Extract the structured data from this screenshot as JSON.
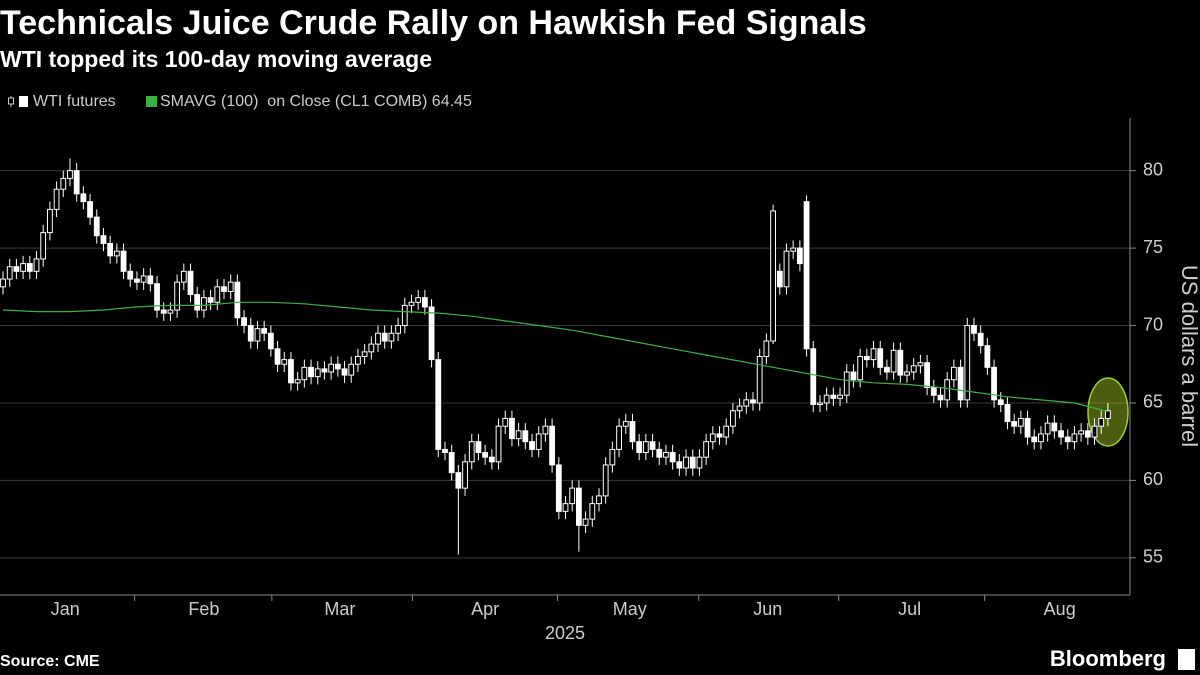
{
  "chart_data": {
    "type": "candlestick",
    "title": "Technicals Juice Crude Rally on Hawkish Fed Signals",
    "subtitle": "WTI topped its 100-day moving average",
    "ylabel": "US dollars a barrel",
    "xlabel": "2025",
    "source": "Source: CME",
    "logo": "Bloomberg",
    "ylim": [
      52.6,
      83.4
    ],
    "yticks": [
      55,
      60,
      65,
      70,
      75,
      80
    ],
    "xlim": [
      -0.45,
      168.3
    ],
    "xticks": [
      {
        "value": 9.3,
        "label": "Jan"
      },
      {
        "value": 30,
        "label": "Feb"
      },
      {
        "value": 50.3,
        "label": "Mar"
      },
      {
        "value": 72,
        "label": "Apr"
      },
      {
        "value": 93.6,
        "label": "May"
      },
      {
        "value": 114.2,
        "label": "Jun"
      },
      {
        "value": 135.4,
        "label": "Jul"
      },
      {
        "value": 157.8,
        "label": "Aug"
      }
    ],
    "grid": true,
    "series": [
      {
        "name": "WTI futures",
        "color": "#ffffff",
        "open": [
          72.5,
          73.0,
          73.8,
          73.5,
          74.0,
          73.5,
          74.3,
          76.0,
          77.5,
          78.8,
          79.5,
          80.0,
          78.5,
          78.0,
          77.0,
          75.8,
          75.3,
          74.5,
          74.8,
          73.5,
          73.0,
          72.8,
          73.2,
          72.7,
          71.0,
          70.8,
          71.0,
          72.8,
          73.5,
          72.0,
          71.0,
          71.8,
          71.5,
          72.5,
          72.2,
          72.8,
          70.5,
          70.0,
          69.0,
          69.8,
          69.5,
          68.5,
          67.5,
          67.8,
          66.3,
          66.5,
          67.3,
          66.7,
          67.2,
          67.0,
          67.5,
          67.2,
          66.8,
          67.5,
          68.0,
          68.3,
          68.8,
          69.5,
          69.0,
          69.5,
          70.0,
          71.3,
          71.5,
          71.8,
          71.2,
          67.8,
          62.0,
          61.8,
          60.5,
          59.5,
          61.2,
          62.5,
          61.8,
          61.5,
          61.2,
          63.5,
          64.0,
          62.7,
          63.2,
          62.5,
          62.0,
          63.0,
          63.5,
          61.0,
          58.0,
          58.5,
          59.5,
          57.1,
          57.5,
          58.5,
          59.0,
          61.0,
          62.0,
          63.5,
          63.8,
          62.5,
          61.8,
          62.5,
          62.0,
          61.5,
          61.8,
          61.2,
          60.8,
          61.5,
          60.8,
          61.5,
          62.5,
          63.0,
          62.8,
          63.5,
          64.5,
          64.8,
          65.2,
          65.0,
          68.0,
          69.0,
          73.5,
          72.5,
          74.8,
          75.0,
          78.0,
          68.5,
          64.9,
          65.0,
          65.5,
          65.3,
          65.5,
          67.0,
          66.5,
          68.0,
          67.8,
          68.5,
          67.3,
          67.0,
          68.4,
          66.8,
          67.0,
          67.4,
          67.6,
          66.0,
          65.5,
          65.2,
          66.5,
          67.3,
          65.2,
          70.0,
          69.5,
          68.7,
          67.3,
          65.2,
          64.9,
          63.8,
          63.5,
          64.0,
          62.8,
          62.5,
          63.0,
          63.7,
          63.2,
          62.8,
          62.5,
          63.0,
          63.2,
          62.8,
          63.5,
          64.0
        ],
        "high": [
          73.5,
          74.3,
          74.3,
          74.5,
          74.5,
          74.8,
          76.5,
          78.0,
          79.3,
          80.0,
          80.8,
          80.5,
          79.0,
          78.5,
          77.5,
          76.3,
          75.8,
          75.3,
          75.3,
          74.0,
          73.5,
          73.7,
          73.7,
          73.2,
          71.5,
          71.5,
          73.3,
          74.0,
          74.0,
          72.5,
          72.3,
          72.3,
          73.0,
          73.0,
          73.3,
          73.3,
          71.0,
          70.5,
          70.3,
          70.3,
          70.0,
          69.0,
          68.3,
          68.3,
          67.0,
          67.8,
          67.8,
          67.7,
          67.7,
          68.0,
          68.0,
          67.7,
          68.0,
          68.5,
          68.8,
          69.3,
          70.0,
          70.0,
          70.0,
          70.5,
          71.8,
          72.0,
          72.3,
          72.3,
          71.7,
          68.3,
          62.5,
          62.3,
          61.0,
          61.7,
          63.0,
          63.0,
          62.3,
          62.0,
          64.0,
          64.5,
          64.5,
          63.7,
          63.7,
          63.0,
          63.5,
          64.0,
          64.0,
          61.5,
          59.0,
          60.0,
          60.0,
          58.0,
          59.0,
          59.5,
          61.5,
          62.5,
          64.0,
          64.3,
          64.3,
          63.0,
          63.0,
          63.0,
          62.5,
          62.3,
          62.3,
          61.7,
          62.0,
          62.0,
          62.0,
          63.0,
          63.5,
          63.5,
          64.0,
          65.0,
          65.3,
          65.7,
          65.7,
          68.5,
          69.5,
          77.8,
          74.0,
          75.3,
          75.5,
          75.5,
          78.4,
          69.0,
          65.5,
          66.0,
          66.0,
          66.0,
          67.5,
          67.5,
          68.5,
          68.5,
          69.0,
          69.0,
          67.8,
          68.9,
          68.9,
          67.5,
          67.9,
          68.1,
          68.1,
          66.5,
          66.0,
          67.0,
          67.8,
          67.8,
          70.5,
          70.5,
          70.0,
          69.2,
          67.8,
          65.7,
          65.4,
          64.3,
          64.5,
          64.5,
          63.3,
          63.5,
          64.2,
          64.2,
          63.7,
          63.3,
          63.5,
          63.7,
          63.7,
          64.0,
          64.5,
          65.0
        ],
        "low": [
          72.0,
          72.5,
          73.0,
          73.0,
          73.0,
          73.0,
          73.8,
          75.5,
          77.0,
          78.3,
          79.0,
          78.0,
          77.5,
          76.5,
          75.3,
          74.8,
          74.0,
          74.0,
          73.0,
          72.5,
          72.3,
          72.3,
          72.2,
          70.5,
          70.3,
          70.3,
          70.5,
          72.3,
          71.5,
          70.5,
          70.5,
          71.0,
          71.0,
          71.7,
          71.7,
          70.0,
          69.5,
          68.5,
          68.5,
          69.0,
          68.0,
          67.0,
          67.0,
          65.8,
          65.8,
          66.0,
          66.2,
          66.2,
          66.5,
          66.5,
          66.7,
          66.3,
          66.3,
          67.0,
          67.5,
          67.8,
          68.3,
          68.5,
          68.5,
          69.0,
          69.5,
          70.8,
          71.0,
          70.7,
          67.3,
          61.5,
          61.3,
          60.0,
          55.2,
          59.0,
          60.7,
          61.3,
          61.0,
          60.7,
          60.7,
          63.0,
          62.2,
          62.2,
          62.0,
          61.5,
          61.5,
          62.5,
          60.5,
          57.5,
          57.5,
          58.0,
          55.4,
          56.6,
          57.0,
          58.0,
          58.5,
          60.5,
          61.5,
          63.0,
          62.0,
          61.3,
          61.3,
          61.5,
          61.0,
          61.0,
          60.7,
          60.3,
          60.3,
          60.3,
          60.3,
          61.0,
          62.0,
          62.3,
          62.3,
          63.0,
          64.0,
          64.3,
          64.5,
          64.5,
          67.5,
          68.8,
          72.0,
          72.0,
          74.3,
          73.5,
          68.0,
          64.4,
          64.4,
          64.5,
          64.8,
          64.8,
          65.0,
          66.0,
          66.0,
          67.3,
          67.3,
          66.8,
          66.5,
          66.5,
          66.3,
          66.3,
          66.5,
          66.9,
          65.5,
          65.0,
          64.7,
          64.7,
          66.0,
          64.7,
          64.7,
          69.0,
          68.2,
          66.8,
          64.7,
          64.4,
          63.3,
          63.0,
          63.0,
          62.3,
          62.0,
          62.0,
          62.5,
          62.7,
          62.3,
          62.0,
          62.0,
          62.5,
          62.3,
          62.3,
          63.0,
          63.5
        ],
        "close": [
          73.0,
          73.8,
          73.5,
          74.0,
          73.5,
          74.3,
          76.0,
          77.5,
          78.8,
          79.5,
          80.0,
          78.5,
          78.0,
          77.0,
          75.8,
          75.3,
          74.5,
          74.8,
          73.5,
          73.0,
          72.8,
          73.2,
          72.7,
          71.0,
          70.8,
          71.0,
          72.8,
          73.5,
          72.0,
          71.0,
          71.8,
          71.5,
          72.5,
          72.2,
          72.8,
          70.5,
          70.0,
          69.0,
          69.8,
          69.5,
          68.5,
          67.5,
          67.8,
          66.3,
          66.5,
          67.3,
          66.7,
          67.2,
          67.0,
          67.5,
          67.2,
          66.8,
          67.5,
          68.0,
          68.3,
          68.8,
          69.5,
          69.0,
          69.5,
          70.0,
          71.3,
          71.5,
          71.8,
          71.2,
          67.8,
          62.0,
          61.8,
          60.5,
          59.5,
          61.2,
          62.5,
          61.8,
          61.5,
          61.2,
          63.5,
          64.0,
          62.7,
          63.2,
          62.5,
          62.0,
          63.0,
          63.5,
          61.0,
          58.0,
          58.5,
          59.5,
          57.1,
          57.5,
          58.5,
          59.0,
          61.0,
          62.0,
          63.5,
          63.8,
          62.5,
          61.8,
          62.5,
          62.0,
          61.5,
          61.8,
          61.2,
          60.8,
          61.5,
          60.8,
          61.5,
          62.5,
          63.0,
          62.8,
          63.5,
          64.5,
          64.8,
          65.2,
          65.0,
          68.0,
          69.0,
          77.4,
          72.5,
          74.8,
          75.0,
          74.0,
          68.5,
          64.9,
          65.0,
          65.5,
          65.3,
          65.5,
          67.0,
          66.5,
          68.0,
          67.8,
          68.5,
          67.3,
          67.0,
          68.4,
          66.8,
          67.0,
          67.4,
          67.6,
          66.0,
          65.5,
          65.2,
          66.5,
          67.3,
          65.2,
          70.0,
          69.5,
          68.7,
          67.3,
          65.2,
          64.9,
          63.8,
          63.5,
          64.0,
          62.8,
          62.5,
          63.0,
          63.7,
          63.2,
          62.8,
          62.5,
          63.0,
          63.2,
          62.8,
          63.5,
          64.0,
          64.5
        ]
      },
      {
        "name": "SMAVG (100)  on Close (CL1 COMB)",
        "color": "#3cb043",
        "x": [
          0,
          5,
          10,
          15,
          20,
          25,
          30,
          35,
          40,
          45,
          50,
          55,
          60,
          65,
          70,
          75,
          80,
          85,
          90,
          95,
          100,
          105,
          110,
          115,
          120,
          125,
          130,
          135,
          140,
          145,
          150,
          155,
          160,
          165
        ],
        "values": [
          71.0,
          70.9,
          70.9,
          71.0,
          71.2,
          71.3,
          71.3,
          71.5,
          71.5,
          71.4,
          71.2,
          71.0,
          70.9,
          70.8,
          70.6,
          70.3,
          70.0,
          69.7,
          69.3,
          68.9,
          68.5,
          68.1,
          67.7,
          67.3,
          66.9,
          66.5,
          66.3,
          66.2,
          66.0,
          65.7,
          65.4,
          65.2,
          65.0,
          64.45
        ]
      }
    ]
  }
}
